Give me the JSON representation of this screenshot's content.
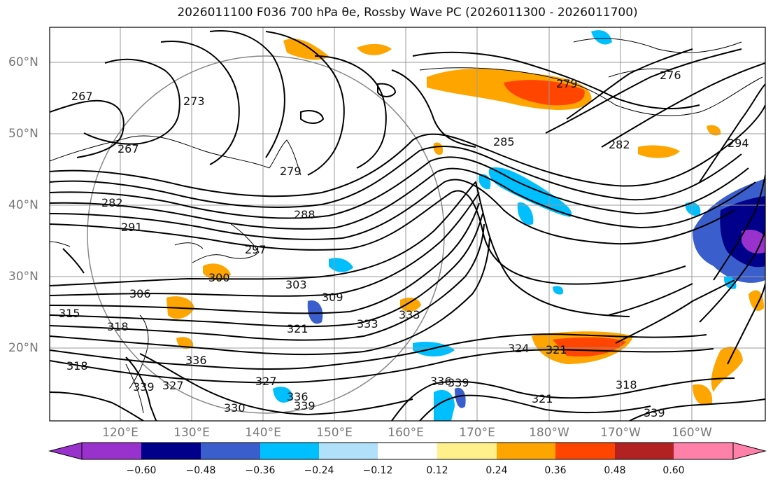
{
  "title": "2026011100 F036 700 hPa θe, Rossby Wave PC (2026011300 - 2026011700)",
  "axes": {
    "lat_labels": [
      "60°N",
      "50°N",
      "40°N",
      "30°N",
      "20°N"
    ],
    "lon_labels": [
      "120°E",
      "130°E",
      "140°E",
      "150°E",
      "160°E",
      "170°E",
      "180°W",
      "170°W",
      "160°W"
    ]
  },
  "contour_labels": [
    "267",
    "273",
    "276",
    "279",
    "282",
    "285",
    "288",
    "291",
    "294",
    "297",
    "300",
    "303",
    "306",
    "309",
    "315",
    "318",
    "321",
    "324",
    "327",
    "330",
    "333",
    "336",
    "339"
  ],
  "colorbar": {
    "ticks": [
      "−0.60",
      "−0.48",
      "−0.36",
      "−0.24",
      "−0.12",
      "0.12",
      "0.24",
      "0.36",
      "0.48",
      "0.60"
    ],
    "colors": [
      "#9932cc",
      "#00008b",
      "#3a5fcd",
      "#00bfff",
      "#b0e0fa",
      "#ffffff",
      "#fff08c",
      "#ffa500",
      "#ff4500",
      "#b22222",
      "#ff80a8"
    ]
  },
  "chart_data": {
    "type": "map",
    "variable": "700 hPa θe contours with Rossby Wave PC shading",
    "contour_levels_K": [
      267,
      270,
      273,
      276,
      279,
      282,
      285,
      288,
      291,
      294,
      297,
      300,
      303,
      306,
      309,
      312,
      315,
      318,
      321,
      324,
      327,
      330,
      333,
      336,
      339
    ],
    "shading_levels": [
      -0.6,
      -0.48,
      -0.36,
      -0.24,
      -0.12,
      0.12,
      0.24,
      0.36,
      0.48,
      0.6
    ],
    "lon_range": [
      "110°E",
      "150°W"
    ],
    "lat_range": [
      "10°N",
      "65°N"
    ]
  }
}
